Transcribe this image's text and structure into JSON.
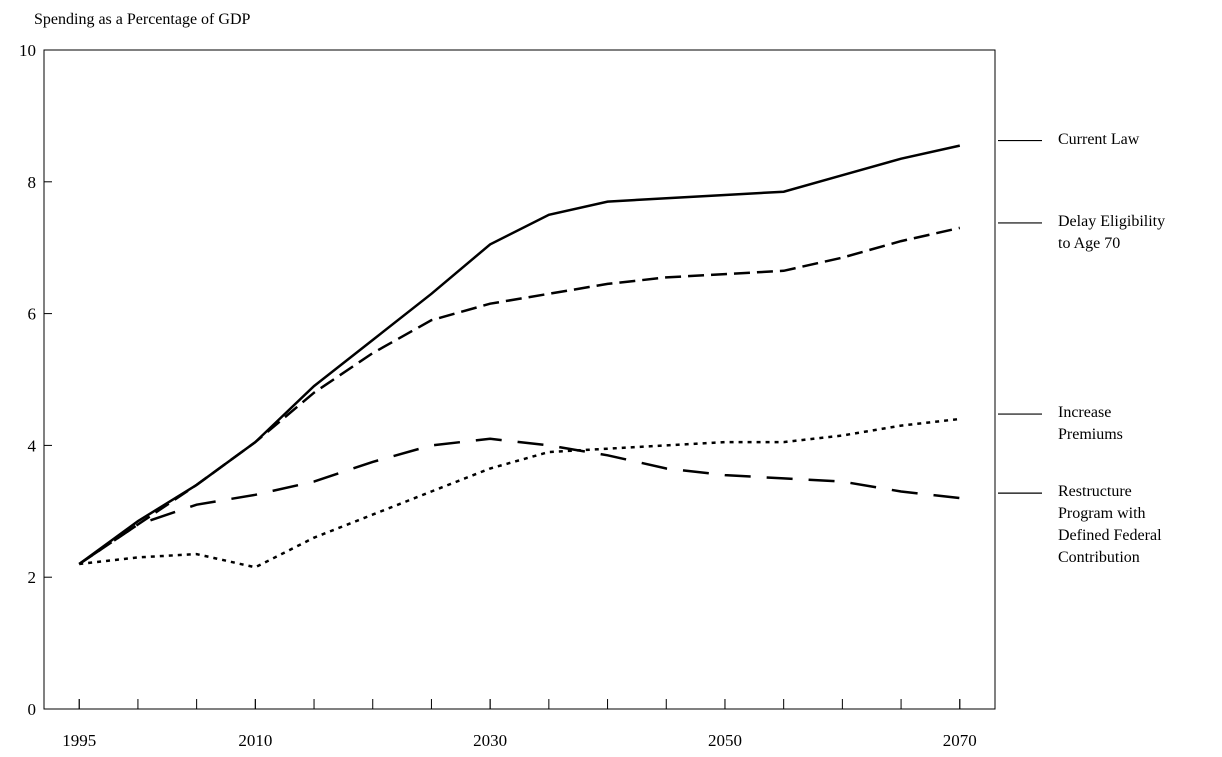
{
  "chart_data": {
    "type": "line",
    "y_axis_title": "Spending as a Percentage of GDP",
    "x": [
      1995,
      2000,
      2005,
      2010,
      2015,
      2020,
      2025,
      2030,
      2035,
      2040,
      2045,
      2050,
      2055,
      2060,
      2065,
      2070
    ],
    "series": [
      {
        "name": "Current Law",
        "color": "#000000",
        "dash": "solid",
        "values": [
          2.2,
          2.85,
          3.4,
          4.05,
          4.9,
          5.6,
          6.3,
          7.05,
          7.5,
          7.7,
          7.75,
          7.8,
          7.85,
          8.1,
          8.35,
          8.55
        ]
      },
      {
        "name": "Delay Eligibility to Age 70",
        "color": "#000000",
        "dash": "dashed",
        "values": [
          2.2,
          2.8,
          3.4,
          4.05,
          4.8,
          5.4,
          5.9,
          6.15,
          6.3,
          6.45,
          6.55,
          6.6,
          6.65,
          6.85,
          7.1,
          7.3
        ]
      },
      {
        "name": "Increase Premiums",
        "color": "#000000",
        "dash": "dotted",
        "values": [
          2.2,
          2.3,
          2.35,
          2.15,
          2.6,
          2.95,
          3.3,
          3.65,
          3.9,
          3.95,
          4.0,
          4.05,
          4.05,
          4.15,
          4.3,
          4.4
        ]
      },
      {
        "name": "Restructure Program with Defined Federal Contribution",
        "color": "#000000",
        "dash": "long-dashed",
        "values": [
          2.2,
          2.8,
          3.1,
          3.25,
          3.45,
          3.75,
          4.0,
          4.1,
          4.0,
          3.85,
          3.65,
          3.55,
          3.5,
          3.45,
          3.3,
          3.2
        ]
      }
    ],
    "xlim": [
      1992,
      2073
    ],
    "ylim": [
      0,
      10
    ],
    "xticks": [
      1995,
      2010,
      2030,
      2050,
      2070
    ],
    "xminor_ticks": [
      1995,
      2000,
      2005,
      2010,
      2015,
      2020,
      2025,
      2030,
      2035,
      2040,
      2045,
      2050,
      2055,
      2060,
      2065,
      2070
    ],
    "yticks": [
      0,
      2,
      4,
      6,
      8,
      10
    ],
    "grid": false,
    "legend": "right"
  }
}
